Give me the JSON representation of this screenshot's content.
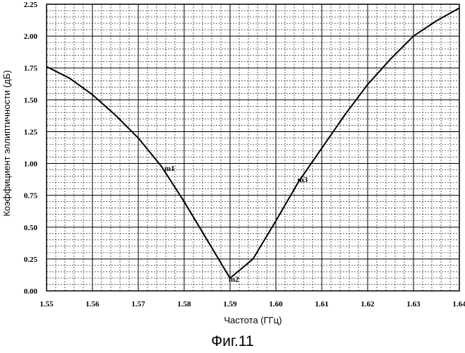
{
  "chart_data": {
    "type": "line",
    "xlabel": "Частота (ГГц)",
    "ylabel": "Коэффициент эллиптичности (дБ)",
    "xlim": [
      1.55,
      1.64
    ],
    "ylim": [
      0,
      2.25
    ],
    "x_ticks": [
      "1.55",
      "1.56",
      "1.57",
      "1.58",
      "1.59",
      "1.60",
      "1.61",
      "1.62",
      "1.63",
      "1.64"
    ],
    "y_ticks": [
      "0.00",
      "0.25",
      "0.50",
      "0.75",
      "1.00",
      "1.25",
      "1.50",
      "1.75",
      "2.00",
      "2.25"
    ],
    "grid": true,
    "series": [
      {
        "x": [
          1.55,
          1.555,
          1.56,
          1.565,
          1.57,
          1.575,
          1.58,
          1.585,
          1.59,
          1.595,
          1.6,
          1.605,
          1.61,
          1.615,
          1.62,
          1.625,
          1.63,
          1.635,
          1.64
        ],
        "y": [
          1.76,
          1.67,
          1.54,
          1.38,
          1.2,
          0.98,
          0.7,
          0.4,
          0.1,
          0.25,
          0.55,
          0.86,
          1.12,
          1.38,
          1.62,
          1.82,
          2.0,
          2.12,
          2.22
        ]
      }
    ],
    "markers": [
      {
        "label": "m1",
        "x": 1.576,
        "y": 0.97
      },
      {
        "label": "m2",
        "x": 1.59,
        "y": 0.1
      },
      {
        "label": "m3",
        "x": 1.605,
        "y": 0.88
      }
    ]
  },
  "caption": "Фиг.11"
}
